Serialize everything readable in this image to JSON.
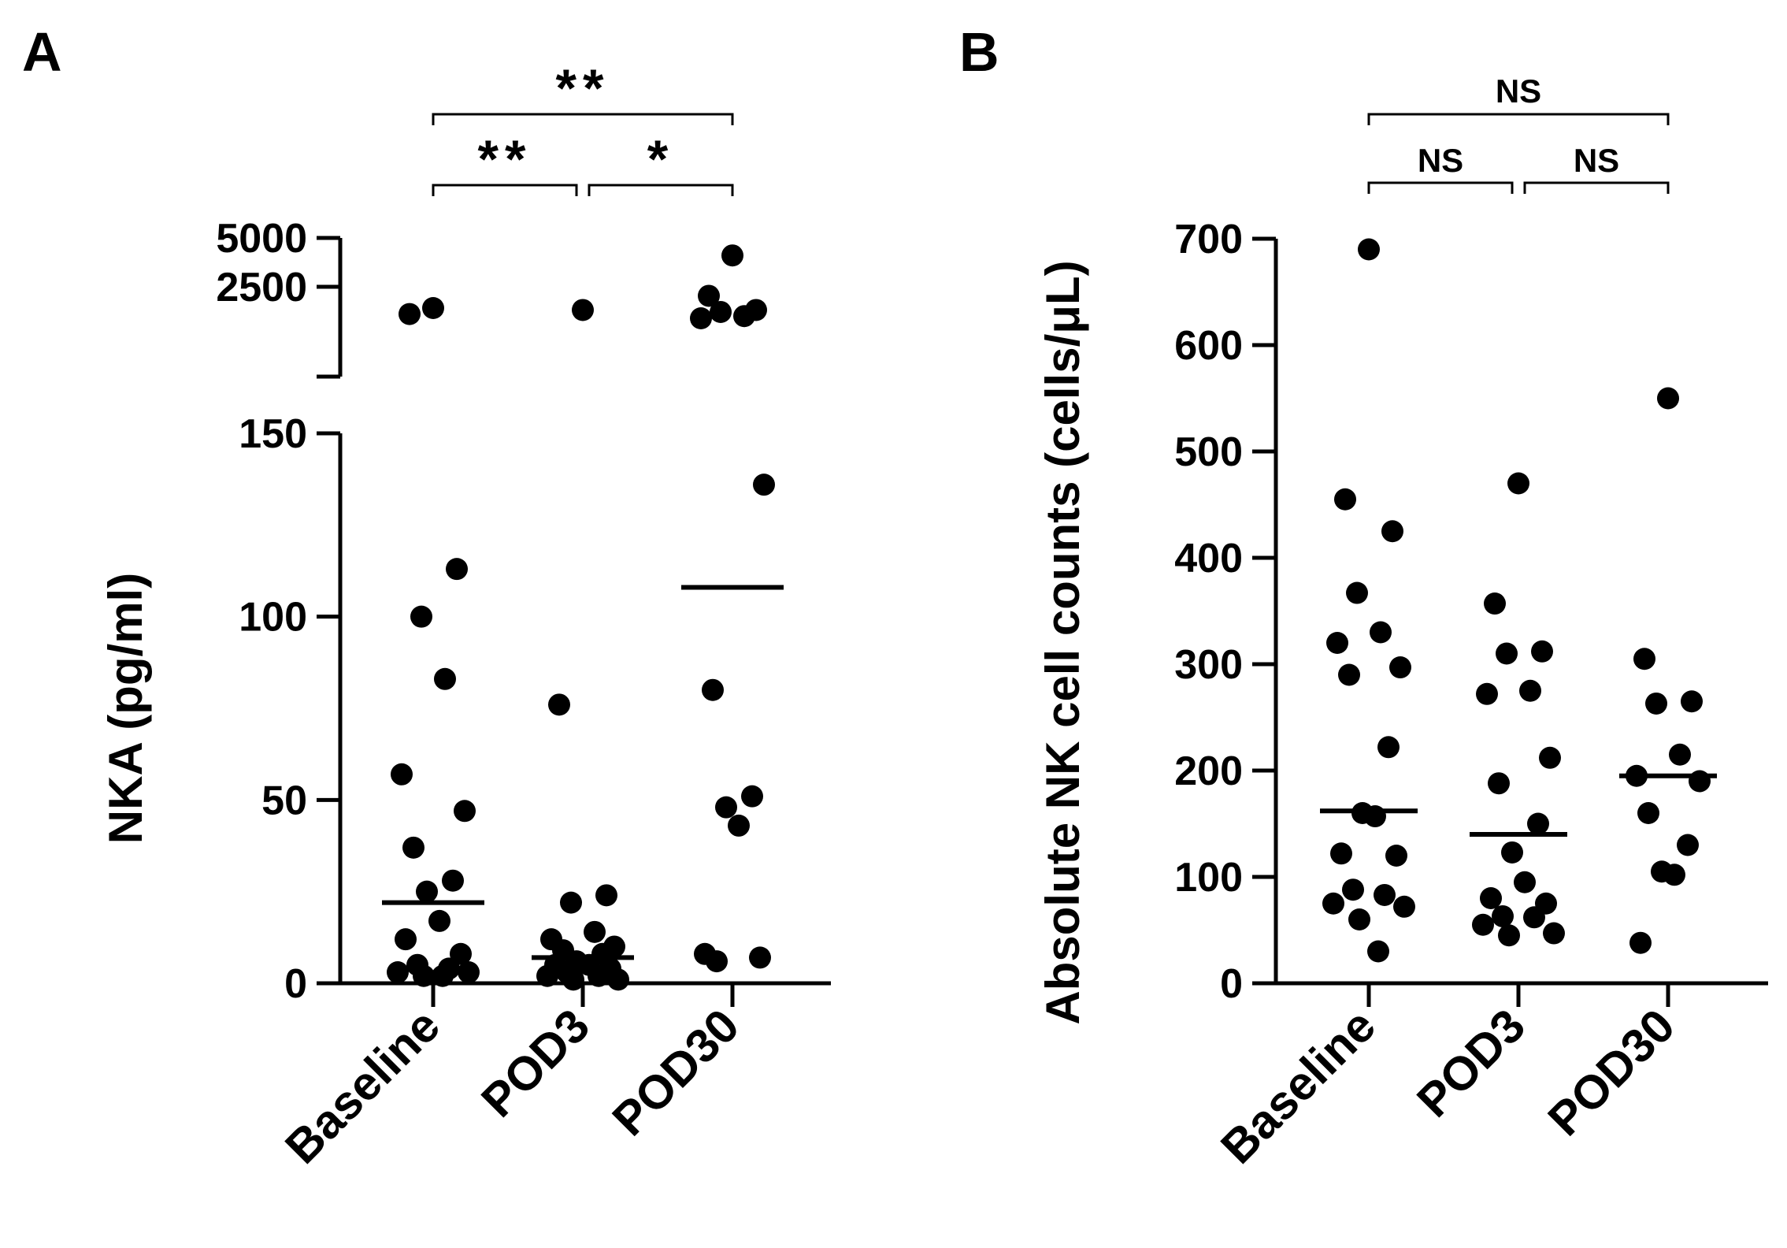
{
  "chart_data": [
    {
      "panel": "A",
      "type": "scatter",
      "ylabel": "NKA (pg/ml)",
      "categories": [
        "Baseline",
        "POD3",
        "POD30"
      ],
      "axis_break": true,
      "lower_segment": {
        "ylim": [
          0,
          150
        ],
        "ticks": [
          0,
          50,
          100,
          150
        ],
        "tick_labels": [
          "0",
          "50",
          "100",
          "150"
        ]
      },
      "upper_segment": {
        "ylim": [
          700,
          5000
        ],
        "ticks": [
          2500,
          5000
        ],
        "tick_labels": [
          "2500",
          "5000"
        ]
      },
      "series": [
        {
          "name": "Baseline",
          "values": [
            1850,
            1700,
            113,
            100,
            83,
            57,
            47,
            37,
            28,
            25,
            17,
            12,
            8,
            5,
            4,
            3,
            3,
            2,
            2
          ],
          "median": 22
        },
        {
          "name": "POD3",
          "values": [
            1800,
            76,
            24,
            22,
            14,
            12,
            10,
            9,
            8,
            6,
            5,
            5,
            4,
            3,
            2,
            2,
            1,
            1
          ],
          "median": 7
        },
        {
          "name": "POD30",
          "values": [
            3900,
            2200,
            1800,
            1750,
            1650,
            1600,
            136,
            80,
            51,
            48,
            43,
            8,
            7,
            6
          ],
          "median": 108
        }
      ],
      "comparisons": [
        {
          "from": "Baseline",
          "to": "POD3",
          "label": "**"
        },
        {
          "from": "POD3",
          "to": "POD30",
          "label": "*"
        },
        {
          "from": "Baseline",
          "to": "POD30",
          "label": "**"
        }
      ]
    },
    {
      "panel": "B",
      "type": "scatter",
      "ylabel": "Absolute NK cell counts (cells/μL)",
      "categories": [
        "Baseline",
        "POD3",
        "POD30"
      ],
      "ylim": [
        0,
        700
      ],
      "ticks": [
        0,
        100,
        200,
        300,
        400,
        500,
        600,
        700
      ],
      "tick_labels": [
        "0",
        "100",
        "200",
        "300",
        "400",
        "500",
        "600",
        "700"
      ],
      "series": [
        {
          "name": "Baseline",
          "values": [
            690,
            455,
            425,
            367,
            330,
            320,
            297,
            290,
            222,
            160,
            157,
            122,
            120,
            88,
            83,
            75,
            72,
            60,
            30
          ],
          "median": 162
        },
        {
          "name": "POD3",
          "values": [
            470,
            357,
            312,
            310,
            275,
            272,
            212,
            188,
            150,
            123,
            95,
            80,
            75,
            63,
            62,
            55,
            47,
            45
          ],
          "median": 140
        },
        {
          "name": "POD30",
          "values": [
            550,
            305,
            265,
            263,
            215,
            195,
            190,
            160,
            130,
            105,
            102,
            38
          ],
          "median": 195
        }
      ],
      "comparisons": [
        {
          "from": "Baseline",
          "to": "POD3",
          "label": "NS"
        },
        {
          "from": "POD3",
          "to": "POD30",
          "label": "NS"
        },
        {
          "from": "Baseline",
          "to": "POD30",
          "label": "NS"
        }
      ]
    }
  ],
  "panel_letters": [
    "A",
    "B"
  ]
}
